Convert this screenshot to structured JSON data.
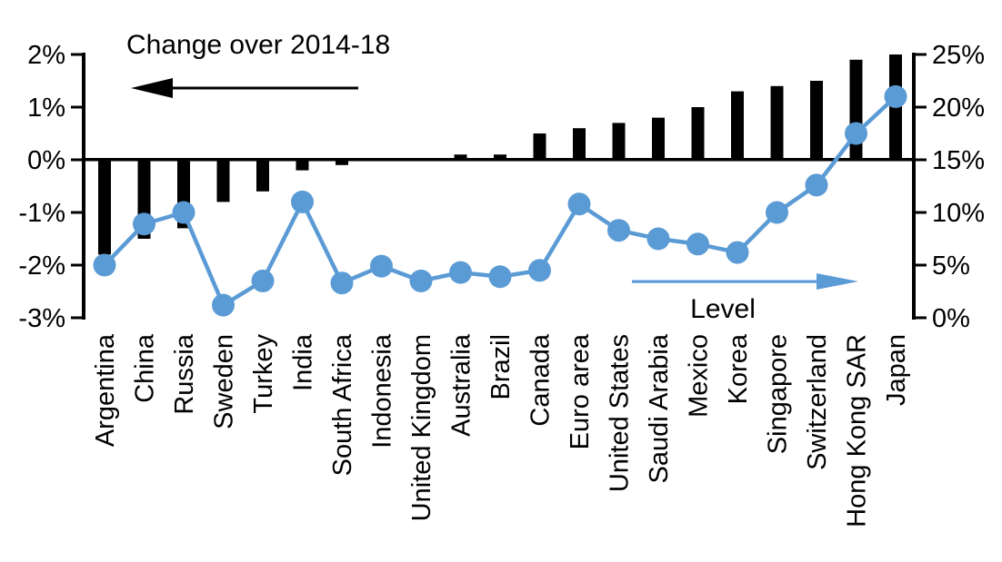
{
  "chart_data": {
    "type": "combo",
    "title": "",
    "categories": [
      "Argentina",
      "China",
      "Russia",
      "Sweden",
      "Turkey",
      "India",
      "South Africa",
      "Indonesia",
      "United Kingdom",
      "Australia",
      "Brazil",
      "Canada",
      "Euro area",
      "United States",
      "Saudi Arabia",
      "Mexico",
      "Korea",
      "Singapore",
      "Switzerland",
      "Hong Kong SAR",
      "Japan"
    ],
    "series": [
      {
        "name": "Change over 2014-18",
        "type": "bar",
        "axis": "left",
        "color": "#000000",
        "values": [
          -1.8,
          -1.5,
          -1.3,
          -0.8,
          -0.6,
          -0.2,
          -0.1,
          0,
          0,
          0.1,
          0.1,
          0.5,
          0.6,
          0.7,
          0.8,
          1.0,
          1.3,
          1.4,
          1.5,
          1.9,
          2.0
        ]
      },
      {
        "name": "Level",
        "type": "line",
        "axis": "right",
        "color": "#5B9BD5",
        "values": [
          5.0,
          8.9,
          10.0,
          1.2,
          3.5,
          11.0,
          3.3,
          4.9,
          3.5,
          4.3,
          3.9,
          4.5,
          10.8,
          8.3,
          7.5,
          7.0,
          6.2,
          10.0,
          12.6,
          17.5,
          21.0
        ]
      }
    ],
    "left_axis": {
      "min": -3,
      "max": 2,
      "tick_values": [
        2,
        1,
        0,
        -1,
        -2,
        -3
      ],
      "tick_labels": [
        "2%",
        "1%",
        "0%",
        "-1%",
        "-2%",
        "-3%"
      ]
    },
    "right_axis": {
      "min": 0,
      "max": 25,
      "tick_values": [
        25,
        20,
        15,
        10,
        5,
        0
      ],
      "tick_labels": [
        "25%",
        "20%",
        "15%",
        "10%",
        "5%",
        "0%"
      ]
    },
    "annotations": [
      {
        "text": "Change over 2014-18",
        "arrow": "left",
        "color": "#000000"
      },
      {
        "text": "Level",
        "arrow": "right",
        "color": "#5B9BD5"
      }
    ],
    "grid": false,
    "legend_position": "in-plot-annotations"
  }
}
